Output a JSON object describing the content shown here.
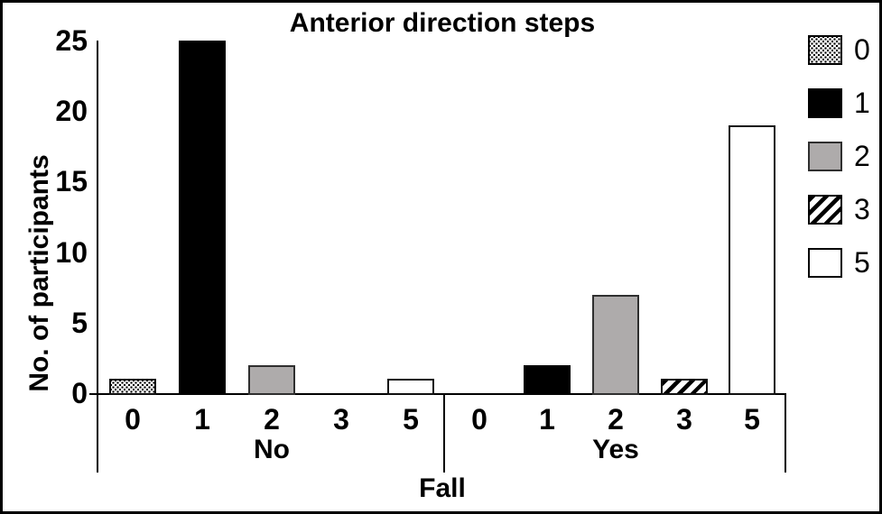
{
  "chart_data": {
    "type": "bar",
    "title": "Anterior direction steps",
    "ylabel": "No. of participants",
    "xlabel": "Fall",
    "ylim": [
      0,
      25
    ],
    "yticks": [
      0,
      5,
      10,
      15,
      20,
      25
    ],
    "grid": false,
    "legend_position": "right-outside",
    "legend": [
      {
        "label": "0",
        "pattern": "dots"
      },
      {
        "label": "1",
        "pattern": "black"
      },
      {
        "label": "2",
        "pattern": "gray"
      },
      {
        "label": "3",
        "pattern": "hatch"
      },
      {
        "label": "5",
        "pattern": "white"
      }
    ],
    "groups": [
      {
        "label": "No",
        "categories": [
          "0",
          "1",
          "2",
          "3",
          "5"
        ],
        "values": [
          1,
          25,
          2,
          0,
          1
        ]
      },
      {
        "label": "Yes",
        "categories": [
          "0",
          "1",
          "2",
          "3",
          "5"
        ],
        "values": [
          0,
          2,
          7,
          1,
          19
        ]
      }
    ],
    "colors": {
      "black": "#000000",
      "gray": "#aeabab",
      "white": "#ffffff",
      "outline": "#111111"
    }
  }
}
